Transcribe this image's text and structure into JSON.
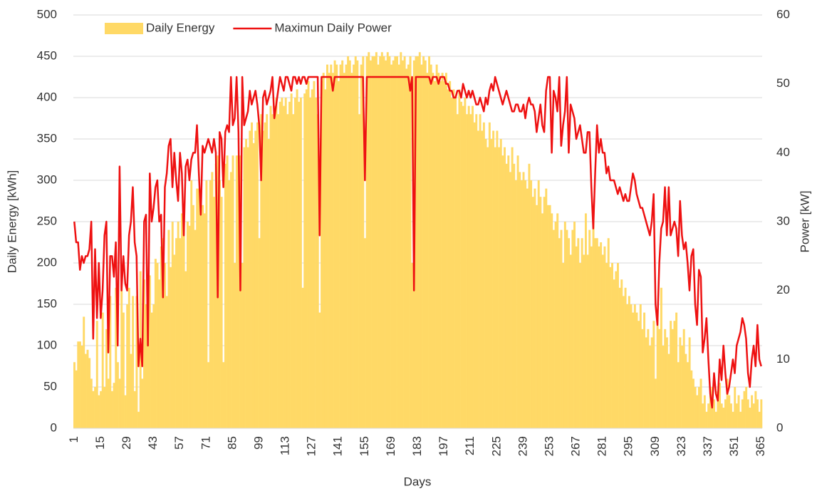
{
  "chart_data": {
    "type": "bar",
    "xlabel": "Days",
    "ylabel": "Daily Energy [kWh]",
    "y2label": "Power [kW]",
    "ylim": [
      0,
      500
    ],
    "yticks": [
      0,
      50,
      100,
      150,
      200,
      250,
      300,
      350,
      400,
      450,
      500
    ],
    "y2lim": [
      0,
      60
    ],
    "y2ticks": [
      0,
      10,
      20,
      30,
      40,
      50,
      60
    ],
    "grid": true,
    "legend": "top-left",
    "categories": [
      "1",
      null,
      null,
      null,
      null,
      null,
      null,
      null,
      null,
      null,
      null,
      null,
      null,
      null,
      "15",
      null,
      null,
      null,
      null,
      null,
      null,
      null,
      null,
      null,
      null,
      null,
      null,
      null,
      "29",
      null,
      null,
      null,
      null,
      null,
      null,
      null,
      null,
      null,
      null,
      null,
      null,
      null,
      "43",
      null,
      null,
      null,
      null,
      null,
      null,
      null,
      null,
      null,
      null,
      null,
      null,
      null,
      "57",
      null,
      null,
      null,
      null,
      null,
      null,
      null,
      null,
      null,
      null,
      null,
      null,
      null,
      "71",
      null,
      null,
      null,
      null,
      null,
      null,
      null,
      null,
      null,
      null,
      null,
      null,
      null,
      "85",
      null,
      null,
      null,
      null,
      null,
      null,
      null,
      null,
      null,
      null,
      null,
      null,
      null,
      "99",
      null,
      null,
      null,
      null,
      null,
      null,
      null,
      null,
      null,
      null,
      null,
      null,
      null,
      "113",
      null,
      null,
      null,
      null,
      null,
      null,
      null,
      null,
      null,
      null,
      null,
      null,
      null,
      "127",
      null,
      null,
      null,
      null,
      null,
      null,
      null,
      null,
      null,
      null,
      null,
      null,
      null,
      "141",
      null,
      null,
      null,
      null,
      null,
      null,
      null,
      null,
      null,
      null,
      null,
      null,
      null,
      "155",
      null,
      null,
      null,
      null,
      null,
      null,
      null,
      null,
      null,
      null,
      null,
      null,
      null,
      "169",
      null,
      null,
      null,
      null,
      null,
      null,
      null,
      null,
      null,
      null,
      null,
      null,
      null,
      "183",
      null,
      null,
      null,
      null,
      null,
      null,
      null,
      null,
      null,
      null,
      null,
      null,
      null,
      "197",
      null,
      null,
      null,
      null,
      null,
      null,
      null,
      null,
      null,
      null,
      null,
      null,
      null,
      "211",
      null,
      null,
      null,
      null,
      null,
      null,
      null,
      null,
      null,
      null,
      null,
      null,
      null,
      "225",
      null,
      null,
      null,
      null,
      null,
      null,
      null,
      null,
      null,
      null,
      null,
      null,
      null,
      "239",
      null,
      null,
      null,
      null,
      null,
      null,
      null,
      null,
      null,
      null,
      null,
      null,
      null,
      "253",
      null,
      null,
      null,
      null,
      null,
      null,
      null,
      null,
      null,
      null,
      null,
      null,
      null,
      "267",
      null,
      null,
      null,
      null,
      null,
      null,
      null,
      null,
      null,
      null,
      null,
      null,
      null,
      "281",
      null,
      null,
      null,
      null,
      null,
      null,
      null,
      null,
      null,
      null,
      null,
      null,
      null,
      "295",
      null,
      null,
      null,
      null,
      null,
      null,
      null,
      null,
      null,
      null,
      null,
      null,
      null,
      "309",
      null,
      null,
      null,
      null,
      null,
      null,
      null,
      null,
      null,
      null,
      null,
      null,
      null,
      "323",
      null,
      null,
      null,
      null,
      null,
      null,
      null,
      null,
      null,
      null,
      null,
      null,
      null,
      "337",
      null,
      null,
      null,
      null,
      null,
      null,
      null,
      null,
      null,
      null,
      null,
      null,
      null,
      "351",
      null,
      null,
      null,
      null,
      null,
      null,
      null,
      null,
      null,
      null,
      null,
      null,
      null,
      "365"
    ],
    "series": [
      {
        "name": "Daily Energy",
        "type": "bar",
        "color": "#ffd966",
        "values": [
          80,
          70,
          105,
          105,
          100,
          135,
          90,
          95,
          85,
          60,
          45,
          50,
          130,
          40,
          45,
          140,
          50,
          120,
          60,
          160,
          45,
          55,
          170,
          80,
          60,
          175,
          140,
          40,
          150,
          170,
          90,
          160,
          45,
          160,
          20,
          190,
          60,
          180,
          150,
          150,
          185,
          140,
          150,
          205,
          200,
          180,
          220,
          230,
          200,
          160,
          240,
          195,
          250,
          210,
          230,
          250,
          230,
          260,
          260,
          190,
          250,
          245,
          300,
          270,
          240,
          290,
          290,
          280,
          270,
          260,
          300,
          80,
          300,
          310,
          280,
          320,
          330,
          300,
          280,
          80,
          320,
          330,
          300,
          310,
          330,
          200,
          330,
          330,
          330,
          200,
          340,
          350,
          340,
          360,
          370,
          345,
          360,
          370,
          230,
          380,
          360,
          370,
          380,
          350,
          390,
          380,
          390,
          400,
          380,
          395,
          400,
          390,
          400,
          380,
          395,
          405,
          380,
          400,
          410,
          395,
          400,
          170,
          405,
          410,
          420,
          400,
          410,
          420,
          400,
          380,
          140,
          420,
          430,
          410,
          440,
          430,
          440,
          430,
          445,
          440,
          420,
          440,
          445,
          430,
          440,
          450,
          445,
          430,
          440,
          450,
          445,
          380,
          440,
          450,
          230,
          450,
          455,
          445,
          450,
          450,
          455,
          440,
          450,
          455,
          450,
          445,
          455,
          450,
          440,
          445,
          450,
          450,
          440,
          455,
          445,
          450,
          435,
          440,
          450,
          200,
          445,
          450,
          450,
          455,
          440,
          450,
          445,
          430,
          450,
          440,
          430,
          420,
          440,
          430,
          420,
          430,
          420,
          430,
          410,
          420,
          400,
          410,
          400,
          380,
          410,
          395,
          390,
          400,
          380,
          390,
          380,
          390,
          370,
          380,
          360,
          380,
          360,
          370,
          350,
          340,
          370,
          350,
          360,
          340,
          360,
          340,
          350,
          330,
          340,
          320,
          330,
          310,
          340,
          320,
          300,
          330,
          310,
          300,
          310,
          300,
          290,
          320,
          300,
          280,
          290,
          270,
          300,
          280,
          260,
          280,
          290,
          270,
          270,
          260,
          240,
          250,
          260,
          230,
          240,
          200,
          250,
          240,
          230,
          210,
          240,
          250,
          220,
          230,
          200,
          230,
          210,
          260,
          210,
          240,
          220,
          250,
          230,
          230,
          220,
          225,
          210,
          220,
          200,
          230,
          195,
          200,
          180,
          190,
          200,
          170,
          180,
          160,
          170,
          150,
          160,
          150,
          140,
          150,
          140,
          130,
          150,
          120,
          140,
          110,
          120,
          100,
          110,
          130,
          60,
          140,
          120,
          170,
          100,
          120,
          110,
          90,
          130,
          120,
          130,
          140,
          80,
          110,
          100,
          120,
          90,
          80,
          110,
          70,
          60,
          50,
          40,
          50,
          60,
          30,
          40,
          20,
          30,
          40,
          50,
          35,
          20,
          45,
          55,
          30,
          25,
          35,
          60,
          40,
          30,
          20,
          50,
          30,
          40,
          20,
          35,
          45,
          50,
          35,
          25,
          40,
          30,
          45,
          35,
          20,
          35
        ]
      },
      {
        "name": "Maximun Daily Power",
        "type": "line",
        "axis": "y2",
        "color": "#ee1111",
        "values": [
          30,
          27,
          27,
          23,
          25,
          24,
          25,
          25,
          26,
          30,
          13,
          26,
          16,
          24,
          16,
          20,
          28,
          30,
          11,
          25,
          25,
          22,
          27,
          12,
          38,
          20,
          25,
          21,
          20,
          28,
          30,
          35,
          27,
          25,
          9,
          13,
          9,
          30,
          31,
          12,
          37,
          30,
          32,
          35,
          36,
          30,
          31,
          19,
          35,
          37,
          41,
          42,
          35,
          40,
          36,
          33,
          40,
          37,
          28,
          38,
          39,
          36,
          39,
          40,
          40,
          44,
          37,
          31,
          41,
          40,
          41,
          42,
          41,
          40,
          42,
          40,
          19,
          43,
          42,
          35,
          43,
          44,
          43,
          51,
          44,
          45,
          51,
          43,
          20,
          51,
          44,
          45,
          46,
          49,
          47,
          48,
          49,
          47,
          44,
          36,
          48,
          49,
          47,
          48,
          49,
          51,
          45,
          47,
          49,
          51,
          50,
          49,
          51,
          51,
          50,
          49,
          51,
          51,
          50,
          51,
          50,
          51,
          51,
          50,
          51,
          51,
          51,
          51,
          51,
          51,
          28,
          51,
          51,
          51,
          51,
          51,
          51,
          49,
          51,
          51,
          51,
          51,
          51,
          51,
          51,
          51,
          51,
          51,
          51,
          51,
          51,
          51,
          51,
          51,
          36,
          51,
          51,
          51,
          51,
          51,
          51,
          51,
          51,
          51,
          51,
          51,
          51,
          51,
          51,
          51,
          51,
          51,
          51,
          51,
          51,
          51,
          51,
          51,
          49,
          51,
          20,
          51,
          51,
          51,
          51,
          51,
          51,
          51,
          51,
          50,
          51,
          51,
          51,
          50,
          51,
          51,
          51,
          50,
          50,
          49,
          49,
          48,
          48,
          49,
          49,
          48,
          50,
          49,
          48,
          49,
          48,
          49,
          48,
          47,
          47,
          48,
          47,
          46,
          48,
          47,
          49,
          50,
          49,
          51,
          50,
          49,
          48,
          47,
          48,
          49,
          48,
          47,
          46,
          46,
          47,
          47,
          46,
          46,
          47,
          45,
          47,
          48,
          47,
          47,
          46,
          43,
          45,
          47,
          44,
          43,
          49,
          51,
          51,
          40,
          49,
          48,
          46,
          51,
          41,
          44,
          46,
          51,
          40,
          47,
          46,
          45,
          42,
          43,
          44,
          42,
          40,
          40,
          43,
          43,
          35,
          29,
          37,
          44,
          40,
          42,
          40,
          40,
          37,
          38,
          36,
          36,
          36,
          35,
          34,
          35,
          34,
          33,
          34,
          33,
          33,
          35,
          37,
          36,
          34,
          33,
          32,
          32,
          31,
          30,
          29,
          28,
          30,
          34,
          18,
          15,
          24,
          29,
          30,
          35,
          28,
          35,
          28,
          29,
          30,
          29,
          25,
          33,
          28,
          26,
          27,
          24,
          20,
          25,
          26,
          18,
          15,
          23,
          22,
          11,
          13,
          16,
          10,
          5,
          3,
          8,
          5,
          4,
          10,
          7,
          12,
          8,
          5,
          6,
          8,
          10,
          8,
          12,
          13,
          14,
          16,
          15,
          13,
          8,
          6,
          10,
          12,
          9,
          15,
          10,
          9
        ]
      }
    ]
  }
}
